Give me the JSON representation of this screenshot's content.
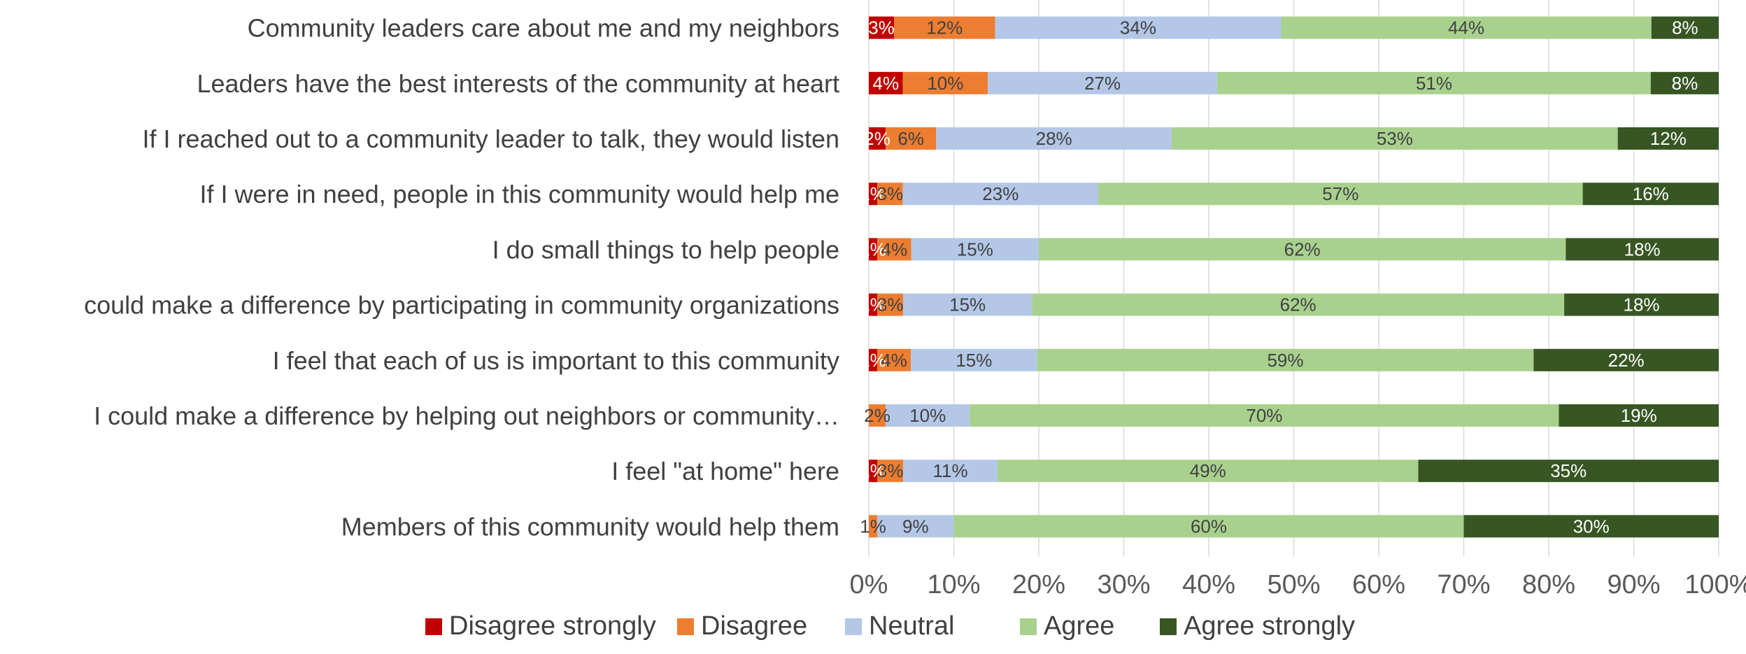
{
  "chart_data": {
    "type": "bar",
    "orientation": "horizontal",
    "stacked": "percent",
    "title": "",
    "xlabel": "",
    "ylabel": "",
    "xlim": [
      0,
      100
    ],
    "grid": true,
    "legend_position": "bottom",
    "categories": [
      "Community leaders care about me and my neighbors",
      "Leaders have the best interests of the community at heart",
      "If I reached out to a community leader to talk, they would listen",
      "If I were in need, people in this community would help me",
      "I do small things to help people",
      "could make a difference by participating in community organizations",
      "I feel that each of us is important to this community",
      "I could make a difference by helping out neighbors or community…",
      "I feel \"at home\" here",
      "Members of this community would help them"
    ],
    "x_ticks": [
      "0%",
      "10%",
      "20%",
      "30%",
      "40%",
      "50%",
      "60%",
      "70%",
      "80%",
      "90%",
      "100%"
    ],
    "series": [
      {
        "name": "Disagree strongly",
        "color": "#C00000",
        "values": [
          3,
          4,
          2,
          1,
          1,
          1,
          1,
          0,
          1,
          0
        ],
        "labels": [
          "3%",
          "4%",
          "2%",
          "1%",
          "1%",
          "1%",
          "1%",
          "",
          "1%",
          ""
        ]
      },
      {
        "name": "Disagree",
        "color": "#ED7D31",
        "values": [
          12,
          10,
          6,
          3,
          4,
          3,
          4,
          2,
          3,
          1
        ],
        "labels": [
          "12%",
          "10%",
          "6%",
          "3%",
          "4%",
          "3%",
          "4%",
          "2%",
          "3%",
          "1%"
        ]
      },
      {
        "name": "Neutral",
        "color": "#B4C7E7",
        "values": [
          34,
          27,
          28,
          23,
          15,
          15,
          15,
          10,
          11,
          9
        ],
        "labels": [
          "34%",
          "27%",
          "28%",
          "23%",
          "15%",
          "15%",
          "15%",
          "10%",
          "11%",
          "9%"
        ]
      },
      {
        "name": "Agree",
        "color": "#A9D18E",
        "values": [
          44,
          51,
          53,
          57,
          62,
          62,
          59,
          70,
          49,
          60
        ],
        "labels": [
          "44%",
          "51%",
          "53%",
          "57%",
          "62%",
          "62%",
          "59%",
          "70%",
          "49%",
          "60%"
        ]
      },
      {
        "name": "Agree strongly",
        "color": "#375623",
        "values": [
          8,
          8,
          12,
          16,
          18,
          18,
          22,
          19,
          35,
          30
        ],
        "labels": [
          "8%",
          "8%",
          "12%",
          "16%",
          "18%",
          "18%",
          "22%",
          "19%",
          "35%",
          "30%"
        ]
      }
    ],
    "colors": {
      "grid": "#D9D9D9",
      "label_dark": "#404040",
      "label_light": "#FFFFFF"
    }
  }
}
